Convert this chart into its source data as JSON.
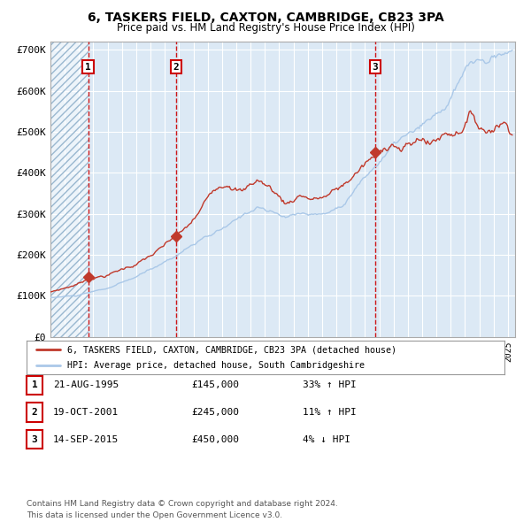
{
  "title": "6, TASKERS FIELD, CAXTON, CAMBRIDGE, CB23 3PA",
  "subtitle": "Price paid vs. HM Land Registry's House Price Index (HPI)",
  "legend_line1": "6, TASKERS FIELD, CAXTON, CAMBRIDGE, CB23 3PA (detached house)",
  "legend_line2": "HPI: Average price, detached house, South Cambridgeshire",
  "copyright": "Contains HM Land Registry data © Crown copyright and database right 2024.\nThis data is licensed under the Open Government Licence v3.0.",
  "hpi_color": "#aac8e8",
  "price_color": "#c0392b",
  "marker_color": "#c0392b",
  "purchase_dates": [
    1995.64,
    2001.8,
    2015.71
  ],
  "purchase_prices": [
    145000,
    245000,
    450000
  ],
  "purchase_labels": [
    "1",
    "2",
    "3"
  ],
  "vline_dates": [
    1995.64,
    2001.8,
    2015.71
  ],
  "table_data": [
    [
      "1",
      "21-AUG-1995",
      "£145,000",
      "33% ↑ HPI"
    ],
    [
      "2",
      "19-OCT-2001",
      "£245,000",
      "11% ↑ HPI"
    ],
    [
      "3",
      "14-SEP-2015",
      "£450,000",
      "4% ↓ HPI"
    ]
  ],
  "ylim": [
    0,
    720000
  ],
  "yticks": [
    0,
    100000,
    200000,
    300000,
    400000,
    500000,
    600000,
    700000
  ],
  "ytick_labels": [
    "£0",
    "£100K",
    "£200K",
    "£300K",
    "£400K",
    "£500K",
    "£600K",
    "£700K"
  ],
  "xlim_start": 1993.0,
  "xlim_end": 2025.5,
  "background_color": "#dce9f5",
  "grid_color": "#ffffff",
  "hatch_end": 1995.64
}
